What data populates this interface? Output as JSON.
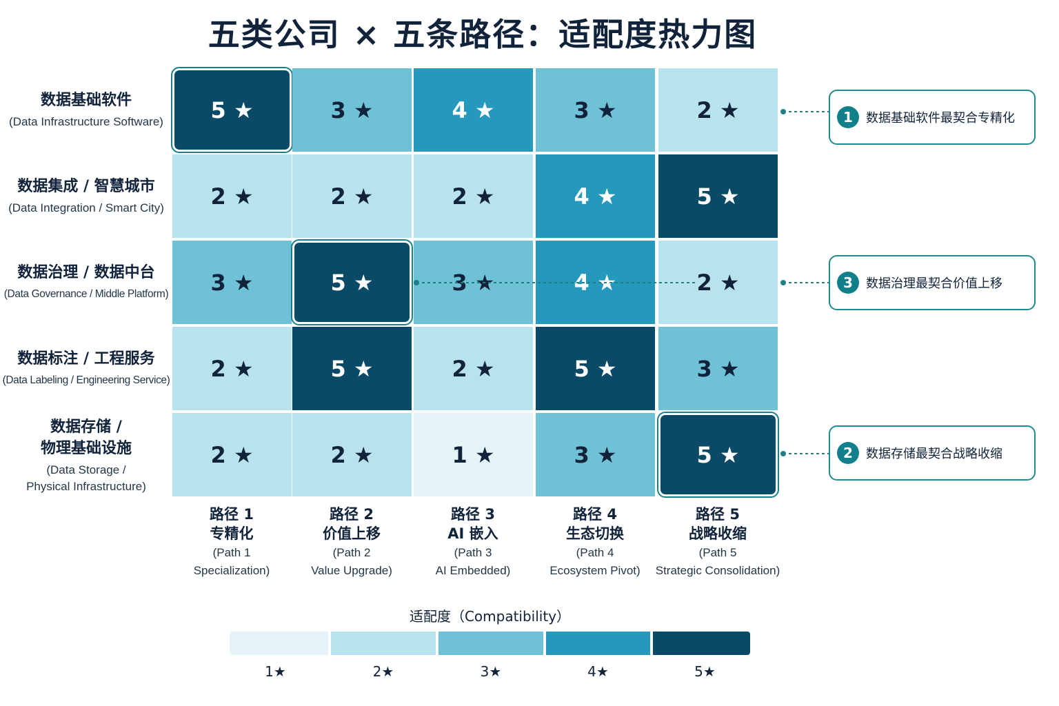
{
  "title": "五类公司 × 五条路径：适配度热力图",
  "chart_data": {
    "type": "heatmap",
    "rows": [
      {
        "cn": "数据基础软件",
        "en": "(Data Infrastructure Software)"
      },
      {
        "cn": "数据集成 / 智慧城市",
        "en": "(Data Integration / Smart City)"
      },
      {
        "cn": "数据治理 / 数据中台",
        "en": "(Data Governance / Middle Platform)"
      },
      {
        "cn": "数据标注 / 工程服务",
        "en": "(Data Labeling / Engineering Service)"
      },
      {
        "cn": "数据存储 / 物理基础设施",
        "en": "(Data Storage / Physical Infrastructure)"
      }
    ],
    "columns": [
      {
        "cn1": "路径 1",
        "cn2": "专精化",
        "en1": "(Path 1",
        "en2": "Specialization)"
      },
      {
        "cn1": "路径 2",
        "cn2": "价值上移",
        "en1": "(Path 2",
        "en2": "Value Upgrade)"
      },
      {
        "cn1": "路径 3",
        "cn2": "AI 嵌入",
        "en1": "(Path 3",
        "en2": "AI Embedded)"
      },
      {
        "cn1": "路径 4",
        "cn2": "生态切换",
        "en1": "(Path 4",
        "en2": "Ecosystem Pivot)"
      },
      {
        "cn1": "路径 5",
        "cn2": "战略收缩",
        "en1": "(Path 5",
        "en2": "Strategic Consolidation)"
      }
    ],
    "values": [
      [
        5,
        3,
        4,
        3,
        2
      ],
      [
        2,
        2,
        2,
        4,
        5
      ],
      [
        3,
        5,
        3,
        4,
        2
      ],
      [
        2,
        5,
        2,
        5,
        3
      ],
      [
        2,
        2,
        1,
        3,
        5
      ]
    ],
    "star": "★",
    "highlighted": [
      [
        0,
        0
      ],
      [
        2,
        1
      ],
      [
        4,
        4
      ]
    ],
    "legend": {
      "title": "适配度（Compatibility）",
      "levels": [
        "1★",
        "2★",
        "3★",
        "4★",
        "5★"
      ],
      "colors": [
        "#e4f4f8",
        "#b8e2ec",
        "#6fc1d6",
        "#2599bb",
        "#0b4a66"
      ]
    }
  },
  "callouts": [
    {
      "number": "1",
      "text": "数据基础软件最契合专精化"
    },
    {
      "number": "3",
      "text": "数据治理最契合价值上移"
    },
    {
      "number": "2",
      "text": "数据存储最契合战略收缩"
    }
  ]
}
